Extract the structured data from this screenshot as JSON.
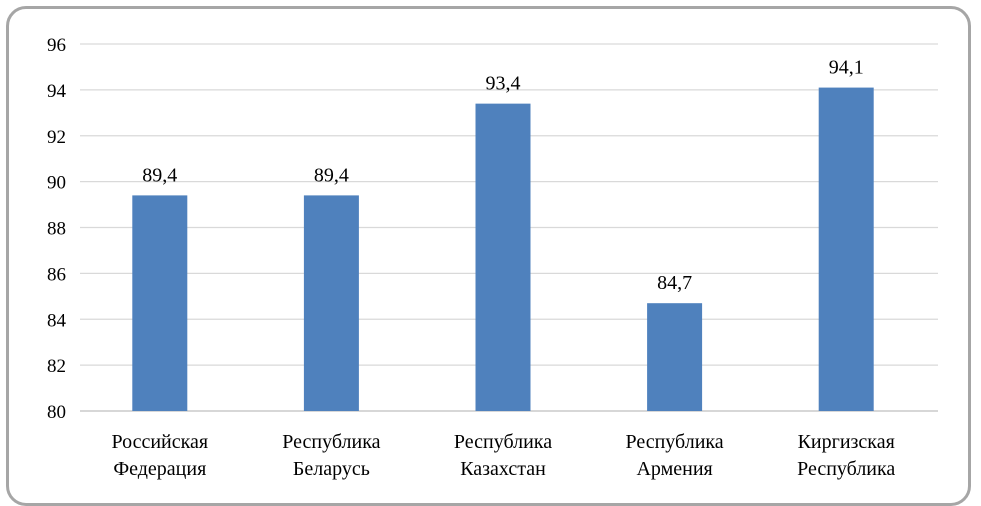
{
  "chart_data": {
    "type": "bar",
    "categories": [
      [
        "Российская",
        "Федерация"
      ],
      [
        "Республика",
        "Беларусь"
      ],
      [
        "Республика",
        "Казахстан"
      ],
      [
        "Республика",
        "Армения"
      ],
      [
        "Киргизская",
        "Республика"
      ]
    ],
    "values": [
      89.4,
      89.4,
      93.4,
      84.7,
      94.1
    ],
    "value_labels": [
      "89,4",
      "89,4",
      "93,4",
      "84,7",
      "94,1"
    ],
    "title": "",
    "xlabel": "",
    "ylabel": "",
    "ylim": [
      80,
      96
    ],
    "yticks": [
      "80",
      "82",
      "84",
      "86",
      "88",
      "90",
      "92",
      "94",
      "96"
    ],
    "grid": true,
    "legend": "none",
    "bar_color": "#4f81bd",
    "grid_color": "#d9d9d9"
  }
}
